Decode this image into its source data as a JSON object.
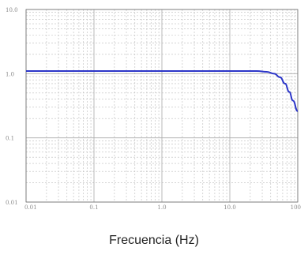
{
  "chart_data": {
    "type": "line",
    "title": "",
    "xlabel": "Frecuencia (Hz)",
    "ylabel": "",
    "x_scale": "log",
    "y_scale": "log",
    "xlim": [
      0.01,
      100
    ],
    "ylim": [
      0.01,
      10
    ],
    "grid": true,
    "x_ticks": [
      {
        "value": 0.01,
        "label": "0.01"
      },
      {
        "value": 0.1,
        "label": "0.1"
      },
      {
        "value": 1,
        "label": "1.0"
      },
      {
        "value": 10,
        "label": "10.0"
      },
      {
        "value": 100,
        "label": "100"
      }
    ],
    "y_ticks": [
      {
        "value": 10,
        "label": "10.0"
      },
      {
        "value": 1,
        "label": "1.0"
      },
      {
        "value": 0.1,
        "label": "0.1"
      },
      {
        "value": 0.01,
        "label": "0.01"
      }
    ],
    "series": [
      {
        "name": "",
        "color": "#2b35c8",
        "points": [
          {
            "x": 0.01,
            "y": 1.1
          },
          {
            "x": 0.1,
            "y": 1.1
          },
          {
            "x": 1,
            "y": 1.1
          },
          {
            "x": 10,
            "y": 1.1
          },
          {
            "x": 25,
            "y": 1.1
          },
          {
            "x": 35,
            "y": 1.07
          },
          {
            "x": 45,
            "y": 1.0
          },
          {
            "x": 55,
            "y": 0.88
          },
          {
            "x": 65,
            "y": 0.7
          },
          {
            "x": 75,
            "y": 0.52
          },
          {
            "x": 85,
            "y": 0.38
          },
          {
            "x": 100,
            "y": 0.26
          }
        ]
      }
    ]
  }
}
